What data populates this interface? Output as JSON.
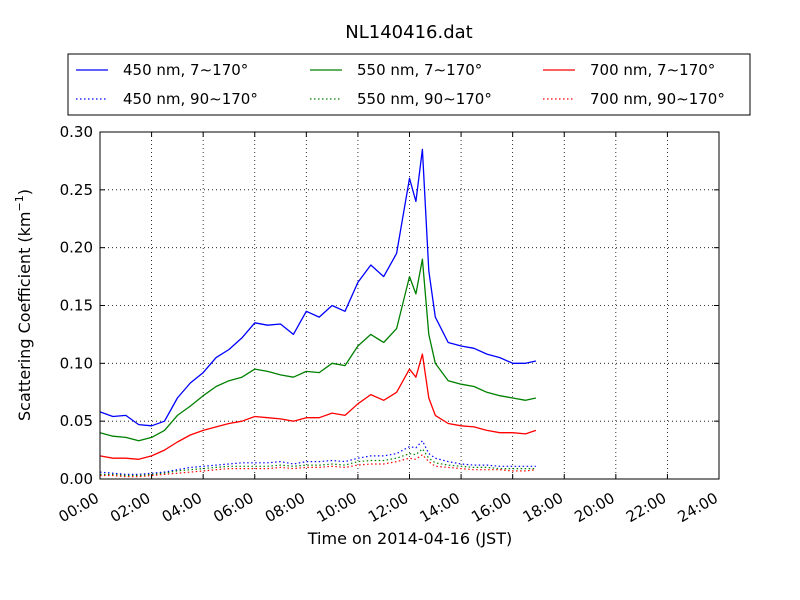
{
  "chart_data": {
    "type": "line",
    "title": "NL140416.dat",
    "xlabel": "Time on 2014-04-16 (JST)",
    "ylabel": "Scattering Coefficient (km",
    "ylabel_sup": "−1",
    "ylabel_close": ")",
    "xlim": [
      0,
      24
    ],
    "ylim": [
      0,
      0.3
    ],
    "x_ticks": [
      0,
      2,
      4,
      6,
      8,
      10,
      12,
      14,
      16,
      18,
      20,
      22,
      24
    ],
    "x_tick_labels": [
      "00:00",
      "02:00",
      "04:00",
      "06:00",
      "08:00",
      "10:00",
      "12:00",
      "14:00",
      "16:00",
      "18:00",
      "20:00",
      "22:00",
      "24:00"
    ],
    "y_ticks": [
      0,
      0.05,
      0.1,
      0.15,
      0.2,
      0.25,
      0.3
    ],
    "y_tick_labels": [
      "0.00",
      "0.05",
      "0.10",
      "0.15",
      "0.20",
      "0.25",
      "0.30"
    ],
    "grid": true,
    "legend_position": "top, above plot",
    "x_hours": [
      0,
      0.5,
      1,
      1.5,
      2,
      2.5,
      3,
      3.5,
      4,
      4.5,
      5,
      5.5,
      6,
      6.5,
      7,
      7.5,
      8,
      8.5,
      9,
      9.5,
      10,
      10.5,
      11,
      11.5,
      12,
      12.25,
      12.5,
      12.75,
      13,
      13.5,
      14,
      14.5,
      15,
      15.5,
      16,
      16.5,
      16.9
    ],
    "series": [
      {
        "name": "450 nm, 7∼170°",
        "color": "#0000ff",
        "style": "solid",
        "values": [
          0.058,
          0.054,
          0.055,
          0.047,
          0.046,
          0.05,
          0.07,
          0.083,
          0.092,
          0.105,
          0.112,
          0.122,
          0.135,
          0.133,
          0.134,
          0.125,
          0.145,
          0.14,
          0.15,
          0.145,
          0.17,
          0.185,
          0.175,
          0.195,
          0.26,
          0.24,
          0.285,
          0.18,
          0.14,
          0.118,
          0.115,
          0.113,
          0.108,
          0.105,
          0.1,
          0.1,
          0.102
        ]
      },
      {
        "name": "450 nm, 90∼170°",
        "color": "#0000ff",
        "style": "dotted",
        "values": [
          0.006,
          0.005,
          0.004,
          0.004,
          0.005,
          0.006,
          0.008,
          0.01,
          0.011,
          0.012,
          0.013,
          0.014,
          0.014,
          0.014,
          0.015,
          0.013,
          0.015,
          0.015,
          0.016,
          0.015,
          0.018,
          0.02,
          0.02,
          0.022,
          0.028,
          0.027,
          0.033,
          0.022,
          0.018,
          0.015,
          0.013,
          0.012,
          0.012,
          0.011,
          0.011,
          0.011,
          0.011
        ]
      },
      {
        "name": "550 nm, 7∼170°",
        "color": "#008000",
        "style": "solid",
        "values": [
          0.04,
          0.037,
          0.036,
          0.033,
          0.036,
          0.042,
          0.055,
          0.063,
          0.072,
          0.08,
          0.085,
          0.088,
          0.095,
          0.093,
          0.09,
          0.088,
          0.093,
          0.092,
          0.1,
          0.098,
          0.115,
          0.125,
          0.118,
          0.13,
          0.175,
          0.16,
          0.19,
          0.125,
          0.1,
          0.085,
          0.082,
          0.08,
          0.075,
          0.072,
          0.07,
          0.068,
          0.07
        ]
      },
      {
        "name": "550 nm, 90∼170°",
        "color": "#008000",
        "style": "dotted",
        "values": [
          0.004,
          0.004,
          0.003,
          0.003,
          0.004,
          0.005,
          0.007,
          0.008,
          0.009,
          0.01,
          0.011,
          0.011,
          0.011,
          0.011,
          0.012,
          0.011,
          0.012,
          0.012,
          0.013,
          0.012,
          0.015,
          0.016,
          0.016,
          0.018,
          0.022,
          0.021,
          0.026,
          0.018,
          0.014,
          0.012,
          0.011,
          0.01,
          0.01,
          0.009,
          0.009,
          0.009,
          0.009
        ]
      },
      {
        "name": "700 nm, 7∼170°",
        "color": "#ff0000",
        "style": "solid",
        "values": [
          0.02,
          0.018,
          0.018,
          0.017,
          0.02,
          0.025,
          0.032,
          0.038,
          0.042,
          0.045,
          0.048,
          0.05,
          0.054,
          0.053,
          0.052,
          0.05,
          0.053,
          0.053,
          0.057,
          0.055,
          0.065,
          0.073,
          0.068,
          0.075,
          0.095,
          0.088,
          0.108,
          0.07,
          0.055,
          0.048,
          0.046,
          0.045,
          0.042,
          0.04,
          0.04,
          0.039,
          0.042
        ]
      },
      {
        "name": "700 nm, 90∼170°",
        "color": "#ff0000",
        "style": "dotted",
        "values": [
          0.003,
          0.003,
          0.002,
          0.002,
          0.003,
          0.004,
          0.005,
          0.006,
          0.007,
          0.008,
          0.009,
          0.009,
          0.009,
          0.009,
          0.01,
          0.009,
          0.01,
          0.01,
          0.011,
          0.01,
          0.012,
          0.013,
          0.013,
          0.015,
          0.018,
          0.017,
          0.021,
          0.015,
          0.011,
          0.01,
          0.009,
          0.008,
          0.008,
          0.008,
          0.007,
          0.007,
          0.008
        ]
      }
    ]
  }
}
